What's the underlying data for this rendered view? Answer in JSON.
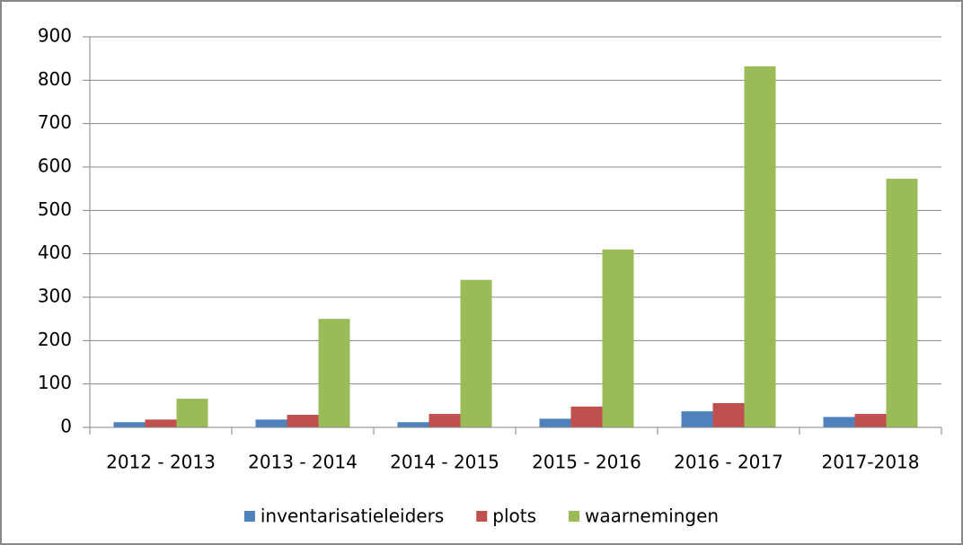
{
  "chart_data": {
    "type": "bar",
    "categories": [
      "2012 - 2013",
      "2013 - 2014",
      "2014 - 2015",
      "2015 - 2016",
      "2016 - 2017",
      "2017-2018"
    ],
    "series": [
      {
        "name": "inventarisatieleiders",
        "color": "#4f81bd",
        "values": [
          12,
          18,
          12,
          20,
          37,
          24
        ]
      },
      {
        "name": "plots",
        "color": "#c0504d",
        "values": [
          18,
          29,
          31,
          48,
          56,
          31
        ]
      },
      {
        "name": "waarnemingen",
        "color": "#9bbb59",
        "values": [
          66,
          250,
          340,
          410,
          832,
          573
        ]
      }
    ],
    "ylim": [
      0,
      900
    ],
    "yticks": [
      0,
      100,
      200,
      300,
      400,
      500,
      600,
      700,
      800,
      900
    ],
    "grid": true,
    "legend": "bottom"
  }
}
